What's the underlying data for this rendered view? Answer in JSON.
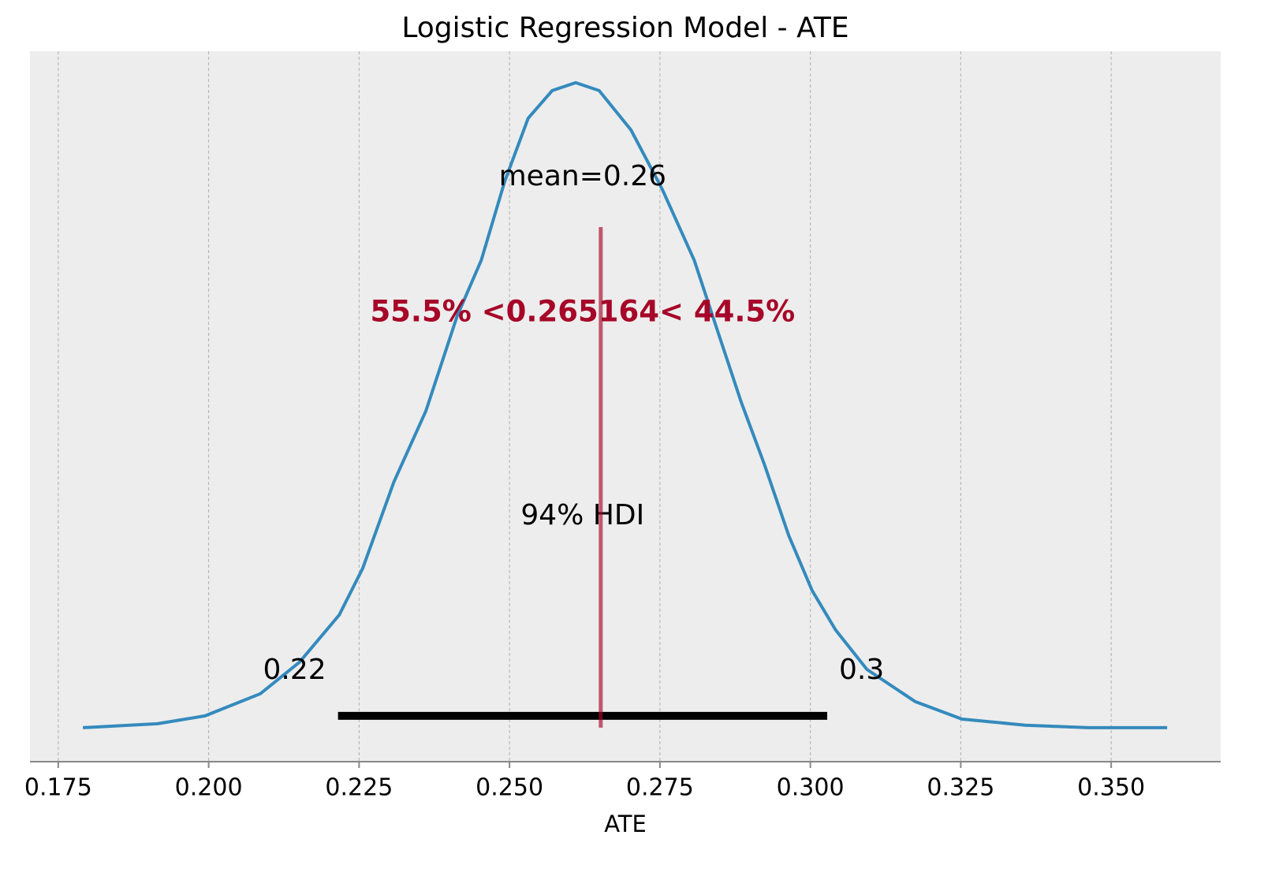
{
  "chart_data": {
    "type": "density",
    "title": "Logistic Regression Model - ATE",
    "x_label": "ATE",
    "x": [
      0.1791,
      0.1915,
      0.1994,
      0.2086,
      0.2151,
      0.2217,
      0.2256,
      0.2308,
      0.2361,
      0.2413,
      0.2453,
      0.2492,
      0.2531,
      0.2571,
      0.261,
      0.2649,
      0.2702,
      0.2754,
      0.2807,
      0.2846,
      0.2885,
      0.2924,
      0.2964,
      0.3003,
      0.3042,
      0.3094,
      0.3174,
      0.3252,
      0.3357,
      0.3462,
      0.3593
    ],
    "values": [
      0,
      0.11,
      0.33,
      0.95,
      1.83,
      3.15,
      4.45,
      6.87,
      8.85,
      11.5,
      13.06,
      15.26,
      17.03,
      17.8,
      18.02,
      17.8,
      16.7,
      15.04,
      13.06,
      11.08,
      9.1,
      7.34,
      5.37,
      3.83,
      2.73,
      1.63,
      0.73,
      0.24,
      0.07,
      0,
      0
    ],
    "color": "#348abd",
    "xlim": [
      0.1703,
      0.3682
    ],
    "ylim": [
      -0.95,
      18.9
    ],
    "xticks": [
      0.175,
      {
        "value": 0.2,
        "label": "0.200"
      },
      0.225,
      {
        "value": 0.25,
        "label": "0.250"
      },
      0.275,
      {
        "value": 0.3,
        "label": "0.300"
      },
      0.325,
      {
        "value": 0.35,
        "label": "0.350"
      }
    ],
    "grid": true,
    "mean_label": "mean=0.26",
    "hdi": [
      0.2215,
      0.3028
    ],
    "hdi_labels": [
      "0.22",
      "0.3"
    ],
    "hdi_prob_label": "94% HDI",
    "ref_val": 0.265164,
    "ref_label": "55.5% <0.265164< 44.5%",
    "ref_color": "#a60628"
  }
}
